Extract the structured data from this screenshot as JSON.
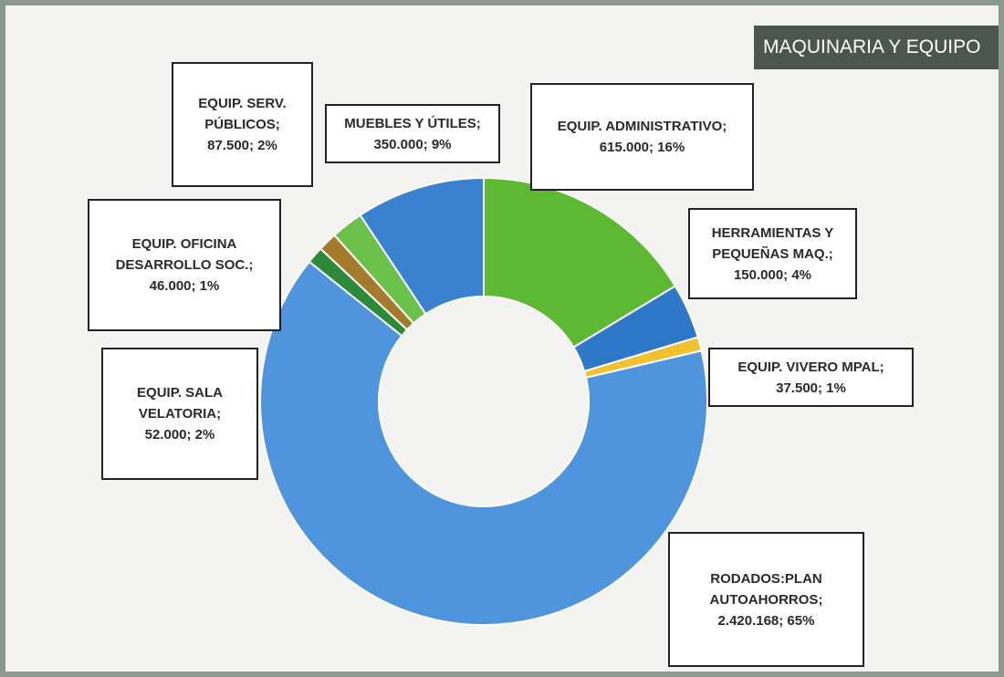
{
  "chart_data": {
    "type": "donut",
    "title": "MAQUINARIA Y EQUIPO",
    "categories": [
      "EQUIP. ADMINISTRATIVO;",
      "HERRAMIENTAS Y PEQUEÑAS MAQ.;",
      "EQUIP. VIVERO MPAL;",
      "RODADOS:PLAN AUTOAHORROS;",
      "EQUIP. OFICINA DESARROLLO SOC.;",
      "EQUIP. SALA VELATORIA;",
      "EQUIP. SERV. PÚBLICOS;",
      "MUEBLES Y ÚTILES;"
    ],
    "values": [
      615000,
      150000,
      37500,
      2420168,
      46000,
      52000,
      87500,
      350000
    ],
    "value_labels": [
      "615.000; 16%",
      "150.000; 4%",
      "37.500; 1%",
      "2.420.168; 65%",
      "46.000; 1%",
      "52.000; 2%",
      "87.500; 2%",
      "350.000; 9%"
    ],
    "colors": [
      "#5db833",
      "#2f78c8",
      "#f2c12e",
      "#4f95dd",
      "#2d8a3b",
      "#a37b2b",
      "#6bc24a",
      "#3a82d0"
    ]
  }
}
